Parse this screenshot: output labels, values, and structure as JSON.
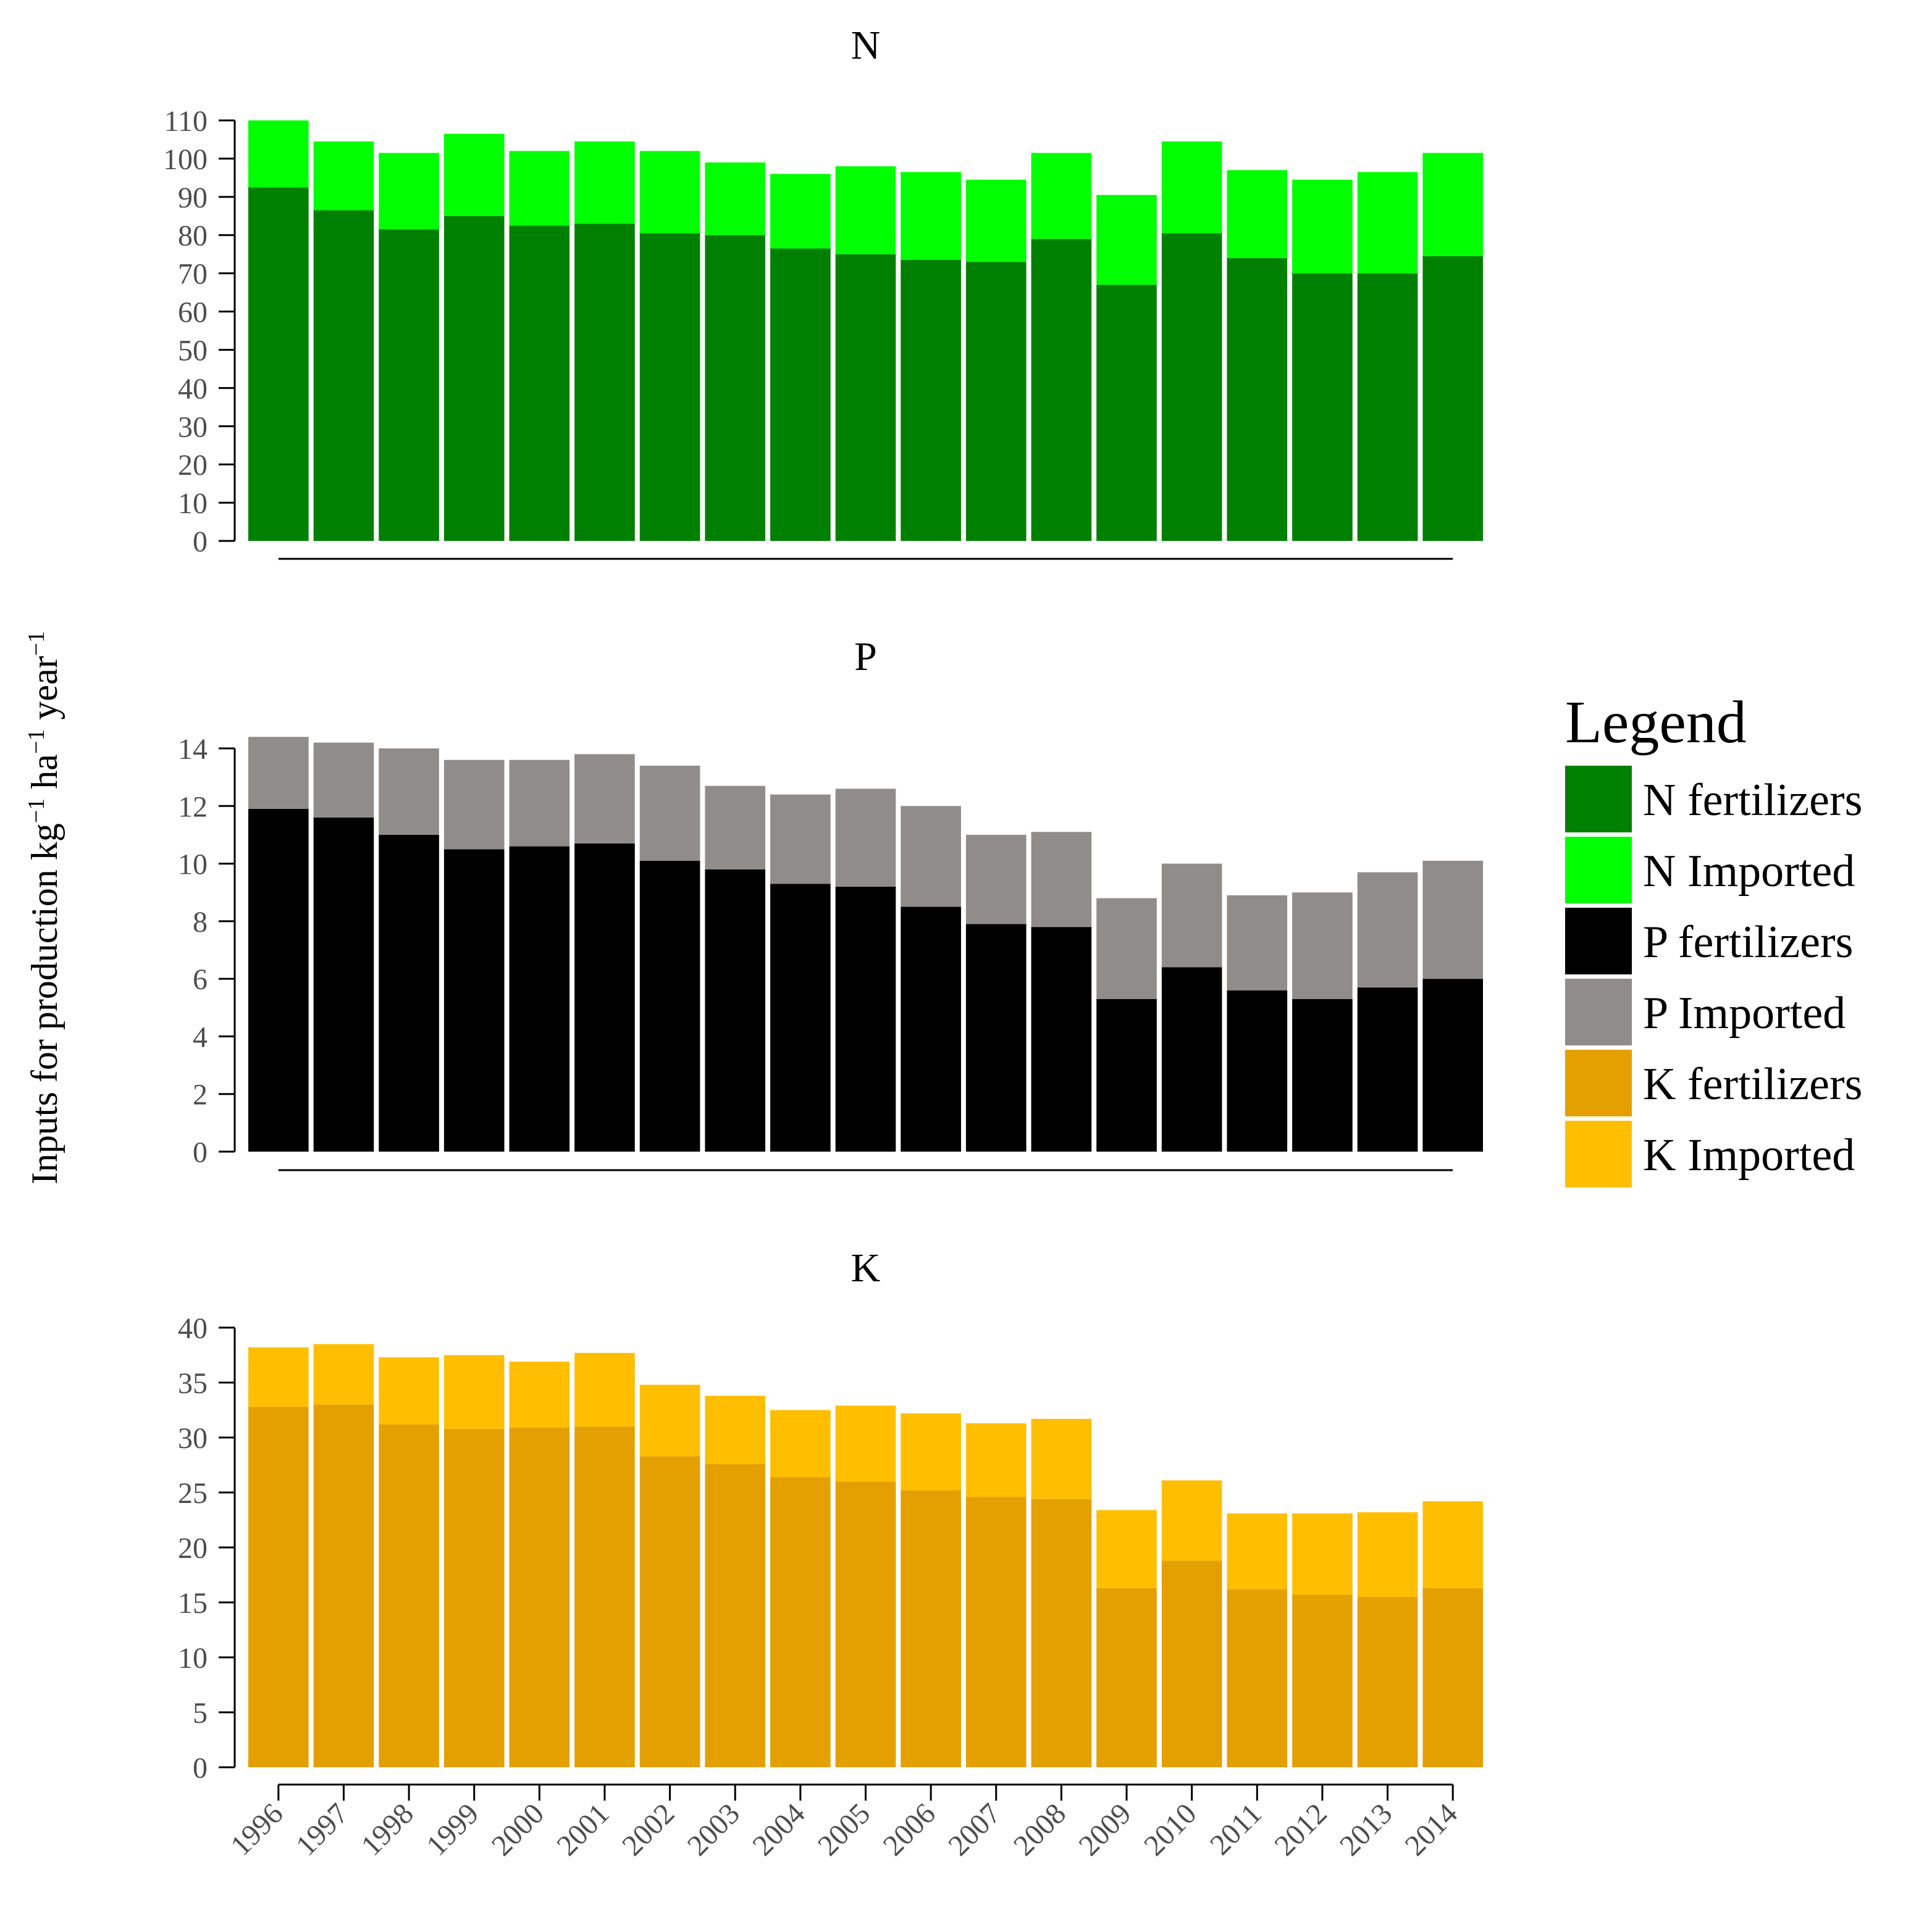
{
  "chart_data": {
    "type": "bar",
    "stacked": true,
    "ylabel": {
      "main": "Inputs for production kg",
      "sup1": "−1",
      "mid": " ha",
      "sup2": "−1",
      "end": " year",
      "sup3": "−1"
    },
    "xlabel": "",
    "categories": [
      "1996",
      "1997",
      "1998",
      "1999",
      "2000",
      "2001",
      "2002",
      "2003",
      "2004",
      "2005",
      "2006",
      "2007",
      "2008",
      "2009",
      "2010",
      "2011",
      "2012",
      "2013",
      "2014"
    ],
    "panels": [
      {
        "title": "N",
        "ylim": [
          0,
          110
        ],
        "yticks": [
          0,
          10,
          20,
          30,
          40,
          50,
          60,
          70,
          80,
          90,
          100,
          110
        ],
        "series": [
          {
            "name": "N fertilizers",
            "color": "#008000",
            "values": [
              92.5,
              86.5,
              81.5,
              85,
              82.5,
              83,
              80.5,
              80,
              76.5,
              75,
              73.5,
              73,
              79,
              67,
              80.5,
              74,
              70,
              70,
              74.5
            ]
          },
          {
            "name": "N Imported",
            "color": "#00ff00",
            "values": [
              17.5,
              18,
              20,
              21.5,
              19.5,
              21.5,
              21.5,
              19,
              19.5,
              23,
              23,
              21.5,
              22.5,
              23.5,
              24,
              23,
              24.5,
              26.5,
              27
            ]
          }
        ]
      },
      {
        "title": "P",
        "ylim": [
          0,
          14
        ],
        "yticks": [
          0,
          2,
          4,
          6,
          8,
          10,
          12,
          14
        ],
        "series": [
          {
            "name": "P fertilizers",
            "color": "#000000",
            "values": [
              11.9,
              11.6,
              11.0,
              10.5,
              10.6,
              10.7,
              10.1,
              9.8,
              9.3,
              9.2,
              8.5,
              7.9,
              7.8,
              5.3,
              6.4,
              5.6,
              5.3,
              5.7,
              6.0
            ]
          },
          {
            "name": "P Imported",
            "color": "#908c89",
            "values": [
              2.5,
              2.6,
              3.0,
              3.1,
              3.0,
              3.1,
              3.3,
              2.9,
              3.1,
              3.4,
              3.5,
              3.1,
              3.3,
              3.5,
              3.6,
              3.3,
              3.7,
              4.0,
              4.1
            ]
          }
        ]
      },
      {
        "title": "K",
        "ylim": [
          0,
          40
        ],
        "yticks": [
          0,
          5,
          10,
          15,
          20,
          25,
          30,
          35,
          40
        ],
        "series": [
          {
            "name": "K fertilizers",
            "color": "#e4a000",
            "values": [
              32.8,
              33.0,
              31.2,
              30.8,
              30.9,
              31.0,
              28.3,
              27.6,
              26.4,
              26.0,
              25.2,
              24.6,
              24.4,
              16.3,
              18.8,
              16.2,
              15.7,
              15.5,
              16.3
            ]
          },
          {
            "name": "K Imported",
            "color": "#ffbf00",
            "values": [
              5.4,
              5.5,
              6.1,
              6.7,
              6.0,
              6.7,
              6.5,
              6.2,
              6.1,
              6.9,
              7.0,
              6.7,
              7.3,
              7.1,
              7.3,
              6.9,
              7.4,
              7.7,
              7.9
            ]
          }
        ]
      }
    ],
    "legend": {
      "title": "Legend",
      "position": "right",
      "items": [
        {
          "label": "N fertilizers",
          "color": "#008000"
        },
        {
          "label": "N Imported",
          "color": "#00ff00"
        },
        {
          "label": "P fertilizers",
          "color": "#000000"
        },
        {
          "label": "P Imported",
          "color": "#908c89"
        },
        {
          "label": "K fertilizers",
          "color": "#e4a000"
        },
        {
          "label": "K Imported",
          "color": "#ffbf00"
        }
      ]
    }
  }
}
